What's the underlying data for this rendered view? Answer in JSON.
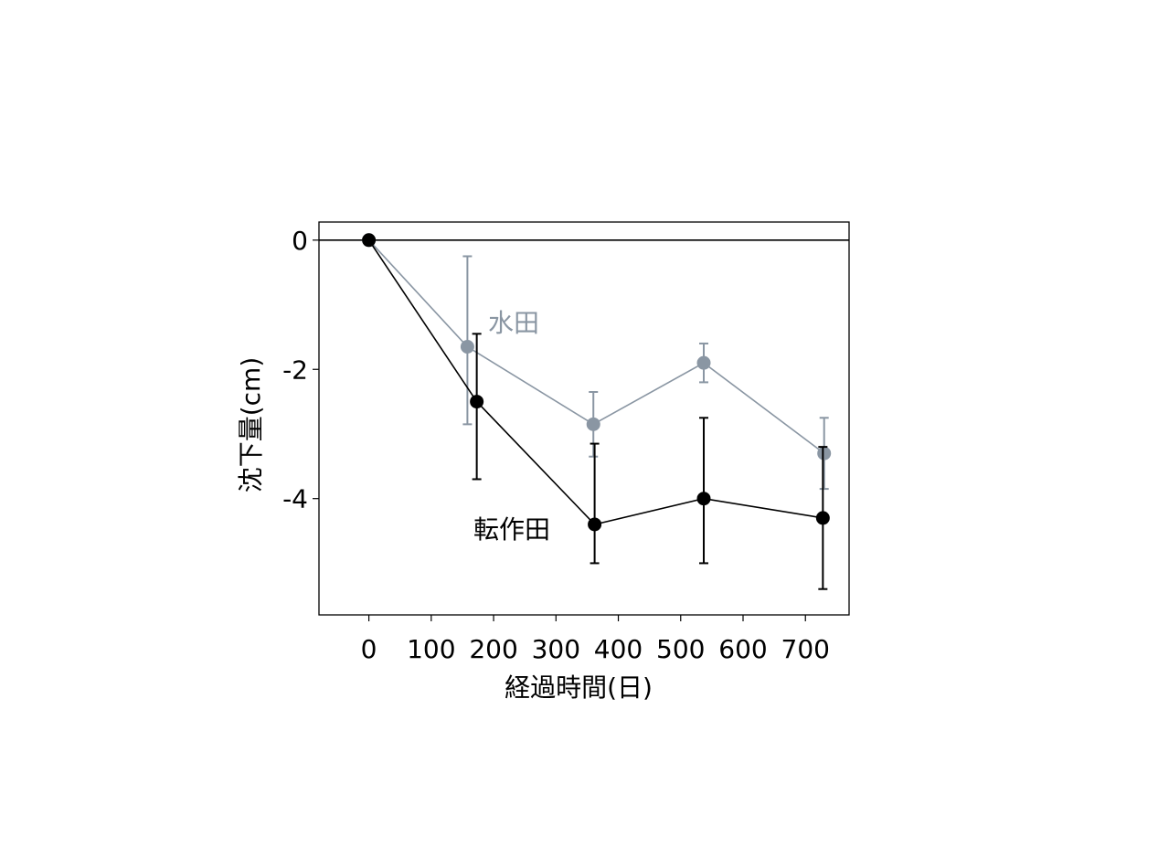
{
  "chart_data": {
    "type": "line",
    "xlabel": "経過時間(日)",
    "ylabel": "沈下量(cm)",
    "xlim": [
      -80,
      770
    ],
    "ylim": [
      -5.8,
      0.28
    ],
    "x_ticks": [
      0,
      100,
      200,
      300,
      400,
      500,
      600,
      700
    ],
    "x_tick_labels": [
      "0",
      "100",
      "200",
      "300",
      "400",
      "500",
      "600",
      "700"
    ],
    "y_ticks": [
      0,
      -2,
      -4
    ],
    "y_tick_labels": [
      "0",
      "-2",
      "-4"
    ],
    "reference_line": 0,
    "grid": false,
    "legend": "none (series labelled directly on the plot)",
    "series": [
      {
        "name": "水田",
        "color": "#8a96a3",
        "x": [
          0,
          158,
          360,
          537,
          730
        ],
        "y": [
          0,
          -1.65,
          -2.85,
          -1.9,
          -3.3
        ],
        "err_low": [
          0,
          1.2,
          0.5,
          0.3,
          0.55
        ],
        "err_high": [
          0,
          1.4,
          0.5,
          0.3,
          0.55
        ]
      },
      {
        "name": "転作田",
        "color": "#000000",
        "x": [
          0,
          173,
          362,
          537,
          728
        ],
        "y": [
          0,
          -2.5,
          -4.4,
          -4.0,
          -4.3
        ],
        "err_low": [
          0,
          1.2,
          0.6,
          1.0,
          1.1
        ],
        "err_high": [
          0,
          1.05,
          1.25,
          1.25,
          1.1
        ]
      }
    ]
  }
}
